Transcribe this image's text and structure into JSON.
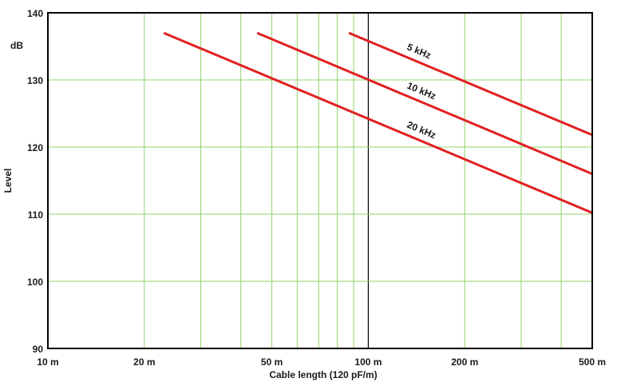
{
  "chart_data": {
    "type": "line",
    "title": "",
    "xlabel": "Cable length (120 pF/m)",
    "ylabel": "Level",
    "yunit": "dB",
    "xscale": "log",
    "xlim": [
      10,
      500
    ],
    "ylim": [
      90,
      140
    ],
    "grid": true,
    "legend": "inline labels on lines",
    "xticks": [
      10,
      20,
      50,
      100,
      200,
      500
    ],
    "xtick_labels": [
      "10 m",
      "20 m",
      "50 m",
      "100 m",
      "200 m",
      "500 m"
    ],
    "xgrid_minor": [
      30,
      40,
      60,
      70,
      80,
      90,
      300,
      400
    ],
    "xgrid_emphasis": [
      100
    ],
    "yticks": [
      90,
      100,
      110,
      120,
      130,
      140
    ],
    "ytick_labels": [
      "90",
      "100",
      "110",
      "120",
      "130",
      "140"
    ],
    "series": [
      {
        "name": "5 kHz",
        "x": [
          87,
          500
        ],
        "y": [
          137,
          121.8
        ]
      },
      {
        "name": "10 kHz",
        "x": [
          45,
          500
        ],
        "y": [
          137,
          116
        ]
      },
      {
        "name": "20 kHz",
        "x": [
          23,
          500
        ],
        "y": [
          137,
          110.2
        ]
      }
    ]
  },
  "colors": {
    "series": "#e02020",
    "grid": "#92d36e",
    "frame": "#000000",
    "grid_emphasis": "#000000"
  }
}
